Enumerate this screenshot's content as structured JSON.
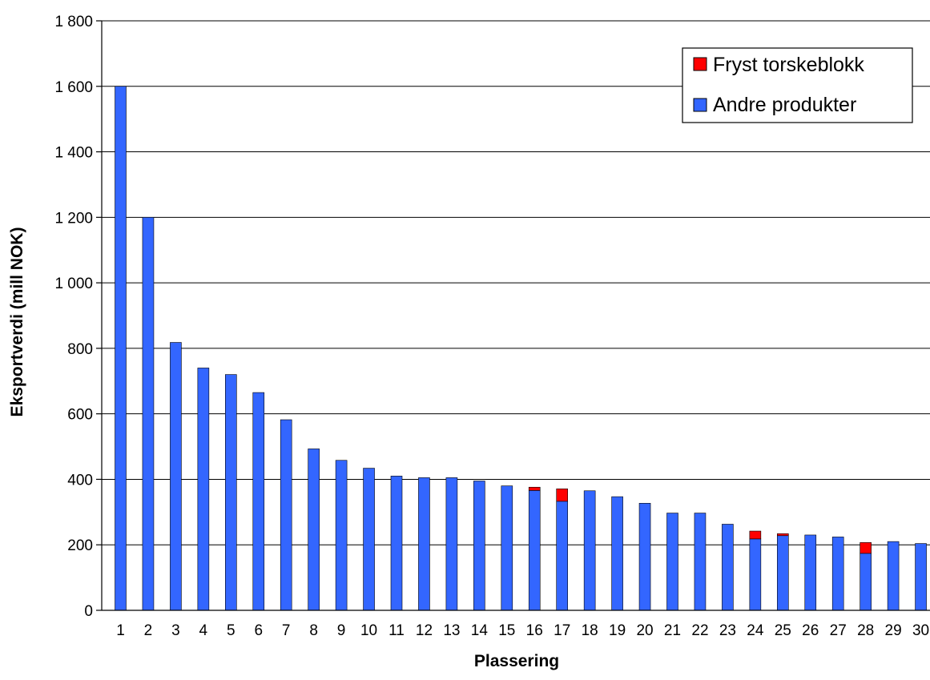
{
  "chart_data": {
    "type": "bar",
    "stacked": true,
    "xlabel": "Plassering",
    "ylabel": "Eksportverdi (mill NOK)",
    "ylim": [
      0,
      1800
    ],
    "ytick_step": 200,
    "ytick_labels": [
      "0",
      "200",
      "400",
      "600",
      "800",
      "1 000",
      "1 200",
      "1 400",
      "1 600",
      "1 800"
    ],
    "grid": "horizontal",
    "legend_position": "top-right",
    "categories": [
      "1",
      "2",
      "3",
      "4",
      "5",
      "6",
      "7",
      "8",
      "9",
      "10",
      "11",
      "12",
      "13",
      "14",
      "15",
      "16",
      "17",
      "18",
      "19",
      "20",
      "21",
      "22",
      "23",
      "24",
      "25",
      "26",
      "27",
      "28",
      "29",
      "30"
    ],
    "series": [
      {
        "name": "Andre produkter",
        "color": "#3366FF",
        "values": [
          1600,
          1200,
          818,
          740,
          720,
          665,
          582,
          493,
          458,
          434,
          410,
          405,
          405,
          395,
          380,
          366,
          333,
          365,
          347,
          327,
          297,
          297,
          263,
          218,
          228,
          230,
          224,
          174,
          210,
          204
        ]
      },
      {
        "name": "Fryst torskeblokk",
        "color": "#FF0000",
        "values": [
          0,
          0,
          0,
          0,
          0,
          0,
          0,
          0,
          0,
          0,
          0,
          0,
          0,
          0,
          0,
          10,
          38,
          0,
          0,
          0,
          0,
          0,
          0,
          24,
          6,
          0,
          0,
          33,
          0,
          0
        ]
      }
    ],
    "legend_order": [
      "Fryst torskeblokk",
      "Andre produkter"
    ]
  }
}
